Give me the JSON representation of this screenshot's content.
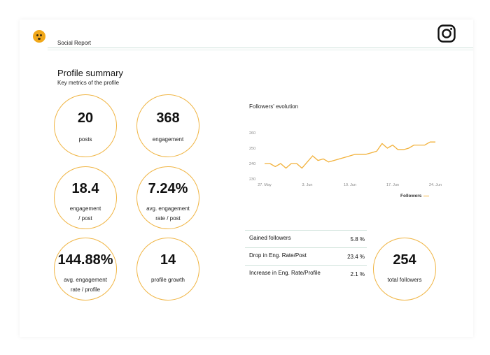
{
  "header": {
    "report_title": "Social Report",
    "app_icon": "instagram-icon",
    "logo_icon": "face-logo-icon"
  },
  "summary": {
    "title": "Profile summary",
    "subtitle": "Key metrics of the profile"
  },
  "metrics": [
    {
      "value": "20",
      "label_line1": "posts",
      "label_line2": ""
    },
    {
      "value": "368",
      "label_line1": "engagement",
      "label_line2": ""
    },
    {
      "value": "18.4",
      "label_line1": "engagement",
      "label_line2": "/ post"
    },
    {
      "value": "7.24%",
      "label_line1": "avg. engagement",
      "label_line2": "rate / post"
    },
    {
      "value": "144.88%",
      "label_line1": "avg. engagement",
      "label_line2": "rate / profile"
    },
    {
      "value": "14",
      "label_line1": "profile growth",
      "label_line2": ""
    }
  ],
  "total_followers": {
    "value": "254",
    "label": "total followers"
  },
  "stats_table": [
    {
      "label": "Gained followers",
      "value": "5.8 %"
    },
    {
      "label": "Drop in Eng. Rate/Post",
      "value": "23.4 %"
    },
    {
      "label": "Increase in Eng. Rate/Profile",
      "value": "2.1 %"
    }
  ],
  "colors": {
    "accent": "#f2b13a",
    "circle_border": "#f0b544",
    "divider": "#cfe2da"
  },
  "chart_data": {
    "type": "line",
    "title": "Followers' evolution",
    "x_tick_labels": [
      "27. May",
      "3. Jun",
      "10. Jun",
      "17. Jun",
      "24. Jun"
    ],
    "y_ticks": [
      230,
      240,
      250,
      260
    ],
    "ylim": [
      230,
      260
    ],
    "legend_position": "bottom-right",
    "grid": false,
    "series": [
      {
        "name": "Followers",
        "color": "#f2b13a",
        "values": [
          240,
          240,
          238,
          240,
          237,
          240,
          240,
          237,
          241,
          245,
          242,
          243,
          241,
          242,
          243,
          244,
          245,
          246,
          246,
          246,
          247,
          248,
          253,
          250,
          252,
          249,
          249,
          250,
          252,
          252,
          252,
          254,
          254
        ]
      }
    ]
  }
}
